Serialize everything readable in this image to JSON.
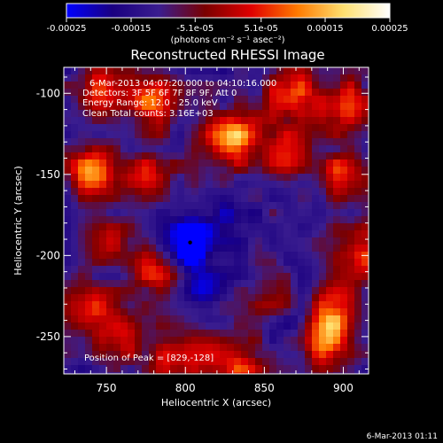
{
  "chart_data": {
    "type": "heatmap",
    "title": "Reconstructed RHESSI Image",
    "xlabel": "Heliocentric X (arcsec)",
    "ylabel": "Heliocentric Y (arcsec)",
    "x_ticks": [
      "750",
      "800",
      "850",
      "900"
    ],
    "x_tick_values": [
      750,
      800,
      850,
      900
    ],
    "y_ticks": [
      "-100",
      "-150",
      "-200",
      "-250"
    ],
    "y_tick_values": [
      -100,
      -150,
      -200,
      -250
    ],
    "xlim": [
      723,
      916
    ],
    "ylim": [
      -273,
      -84
    ],
    "colorbar": {
      "ticks": [
        "-0.00025",
        "-0.00015",
        "-5.1e-05",
        "5.1e-05",
        "0.00015",
        "0.00025"
      ],
      "tick_values": [
        -0.00025,
        -0.00015,
        -5.1e-05,
        5.1e-05,
        0.00015,
        0.00025
      ],
      "range": [
        -0.00025,
        0.00025
      ],
      "unit_label": "(photons cm⁻² s⁻¹ asec⁻²)",
      "colormap": [
        "#0000ff",
        "#1a0080",
        "#3a1d8f",
        "#7a0000",
        "#e00000",
        "#ff7a00",
        "#ffe070",
        "#ffffff"
      ]
    },
    "annotations": [
      "6-Mar-2013 04:07:20.000 to 04:10:16.000",
      "Detectors: 3F 5F 6F 7F 8F 9F, Att 0",
      "Energy Range: 12.0 - 25.0 keV",
      "Clean    Total counts: 3.16E+03"
    ],
    "peak_label": "Position of Peak = [829,-128]",
    "marker": {
      "x": 803,
      "y": -192
    },
    "bright_sources": [
      {
        "x": 745,
        "y": -98,
        "amp": 0.00012
      },
      {
        "x": 778,
        "y": -106,
        "amp": 0.00016
      },
      {
        "x": 829,
        "y": -128,
        "amp": 0.00025
      },
      {
        "x": 868,
        "y": -102,
        "amp": 0.00018
      },
      {
        "x": 900,
        "y": -108,
        "amp": 0.00016
      },
      {
        "x": 742,
        "y": -148,
        "amp": 0.0002
      },
      {
        "x": 778,
        "y": -148,
        "amp": 9e-05
      },
      {
        "x": 862,
        "y": -136,
        "amp": 0.00011
      },
      {
        "x": 900,
        "y": -150,
        "amp": 0.00013
      },
      {
        "x": 780,
        "y": -208,
        "amp": 0.0001
      },
      {
        "x": 833,
        "y": -268,
        "amp": 0.00013
      },
      {
        "x": 858,
        "y": -222,
        "amp": 0.0001
      },
      {
        "x": 895,
        "y": -232,
        "amp": 0.00015
      },
      {
        "x": 888,
        "y": -253,
        "amp": 0.00021
      },
      {
        "x": 910,
        "y": -198,
        "amp": 0.00014
      },
      {
        "x": 760,
        "y": -248,
        "amp": 0.00013
      },
      {
        "x": 738,
        "y": -232,
        "amp": 0.00011
      },
      {
        "x": 792,
        "y": -262,
        "amp": 0.00011
      },
      {
        "x": 748,
        "y": -192,
        "amp": 7e-05
      },
      {
        "x": 815,
        "y": -258,
        "amp": 7e-05
      }
    ],
    "dark_sources": [
      {
        "x": 803,
        "y": -193,
        "amp": -0.00022
      },
      {
        "x": 810,
        "y": -220,
        "amp": -8e-05
      },
      {
        "x": 870,
        "y": -215,
        "amp": -6e-05
      },
      {
        "x": 870,
        "y": -240,
        "amp": -6e-05
      },
      {
        "x": 830,
        "y": -180,
        "amp": -5e-05
      }
    ]
  },
  "footer_timestamp": "6-Mar-2013 01:11"
}
